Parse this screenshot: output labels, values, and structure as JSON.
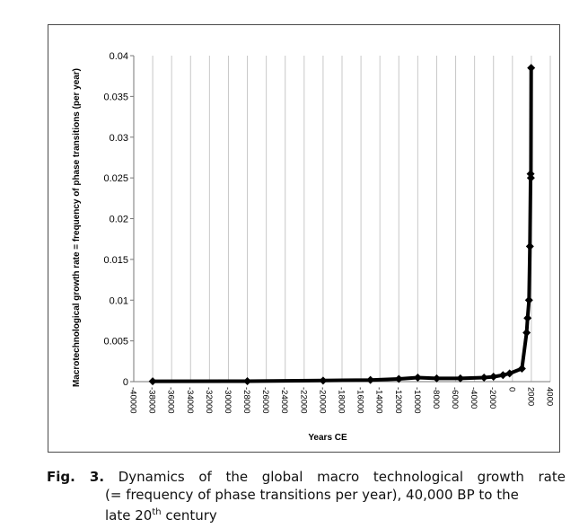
{
  "chart_data": {
    "type": "line",
    "xlabel": "Years CE",
    "ylabel": "Macrotechnological  growth rate = frequency of phase transitions (per year)",
    "xlim": [
      -40000,
      4000
    ],
    "ylim": [
      0,
      0.04
    ],
    "x_ticks": [
      "-40000",
      "-38000",
      "-36000",
      "-34000",
      "-32000",
      "-30000",
      "-28000",
      "-26000",
      "-24000",
      "-22000",
      "-20000",
      "-18000",
      "-16000",
      "-14000",
      "-12000",
      "-10000",
      "-8000",
      "-6000",
      "-4000",
      "-2000",
      "0",
      "2000",
      "4000"
    ],
    "x_tick_values": [
      -40000,
      -38000,
      -36000,
      -34000,
      -32000,
      -30000,
      -28000,
      -26000,
      -24000,
      -22000,
      -20000,
      -18000,
      -16000,
      -14000,
      -12000,
      -10000,
      -8000,
      -6000,
      -4000,
      -2000,
      0,
      2000,
      4000
    ],
    "y_ticks": [
      "0",
      "0.005",
      "0.01",
      "0.015",
      "0.02",
      "0.025",
      "0.03",
      "0.035",
      "0.04"
    ],
    "y_tick_values": [
      0,
      0.005,
      0.01,
      0.015,
      0.02,
      0.025,
      0.03,
      0.035,
      0.04
    ],
    "grid": "vertical",
    "series": [
      {
        "color": "#000000",
        "marker": "diamond",
        "x": [
          -38000,
          -28000,
          -20000,
          -15000,
          -12000,
          -10000,
          -8000,
          -5500,
          -3000,
          -2000,
          -1000,
          -300,
          1000,
          1500,
          1600,
          1750,
          1850,
          1920,
          1950,
          1980
        ],
        "y": [
          4e-05,
          5e-05,
          0.00013,
          0.0002,
          0.00033,
          0.0005,
          0.0004,
          0.0004,
          0.0005,
          0.0006,
          0.0008,
          0.001,
          0.0016,
          0.006,
          0.0078,
          0.01,
          0.0166,
          0.0255,
          0.025,
          0.0385
        ]
      }
    ]
  },
  "caption": {
    "label": "Fig. 3.",
    "line1": "Dynamics of the global macro technological growth rate",
    "line2": "(= frequency of phase transitions per year), 40,000 BP to the",
    "line3_prefix": "late 20",
    "line3_sup": "th",
    "line3_suffix": " century"
  }
}
